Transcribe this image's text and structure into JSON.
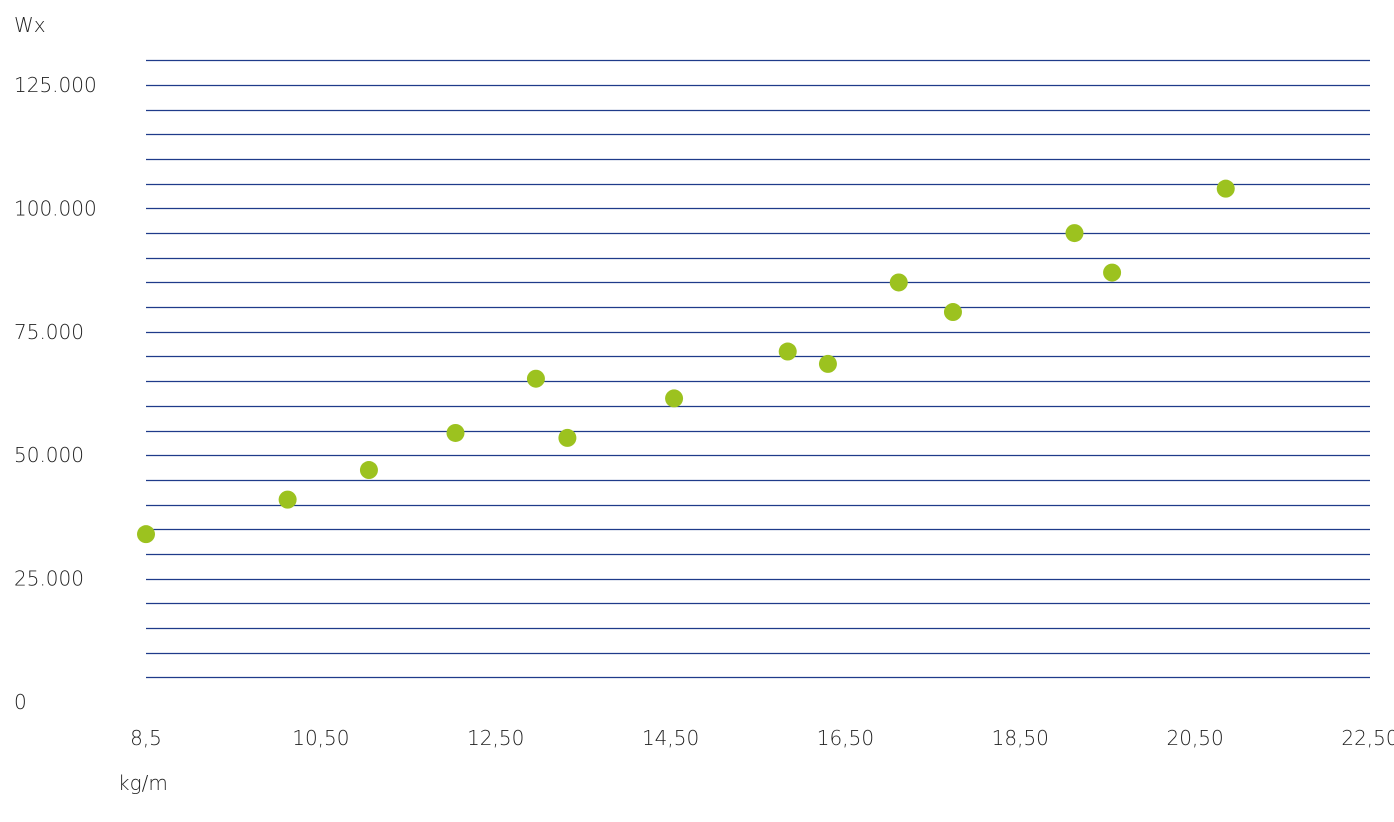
{
  "chart_data": {
    "type": "scatter",
    "ylabel": "Wx",
    "xlabel": "kg/m",
    "xlim": [
      8.5,
      22.5
    ],
    "ylim": [
      0,
      125000
    ],
    "x_ticks": [
      {
        "value": 8.5,
        "label": "8,5"
      },
      {
        "value": 10.5,
        "label": "10,50"
      },
      {
        "value": 12.5,
        "label": "12,50"
      },
      {
        "value": 14.5,
        "label": "14,50"
      },
      {
        "value": 16.5,
        "label": "16,50"
      },
      {
        "value": 18.5,
        "label": "18,50"
      },
      {
        "value": 20.5,
        "label": "20,50"
      },
      {
        "value": 22.5,
        "label": "22,50"
      }
    ],
    "y_ticks": [
      {
        "value": 0,
        "label": "0"
      },
      {
        "value": 25000,
        "label": "25.000"
      },
      {
        "value": 50000,
        "label": "50.000"
      },
      {
        "value": 75000,
        "label": "75.000"
      },
      {
        "value": 100000,
        "label": "100.000"
      },
      {
        "value": 125000,
        "label": "125.000"
      }
    ],
    "gridlines": {
      "y_max": 130000,
      "step": 5000,
      "color": "#1f3b8a"
    },
    "point_color": "#9cc21f",
    "points": [
      {
        "x": 8.5,
        "y": 34000
      },
      {
        "x": 10.12,
        "y": 41000
      },
      {
        "x": 11.05,
        "y": 47000
      },
      {
        "x": 12.04,
        "y": 54500
      },
      {
        "x": 12.96,
        "y": 65500
      },
      {
        "x": 13.32,
        "y": 53500
      },
      {
        "x": 14.54,
        "y": 61500
      },
      {
        "x": 15.84,
        "y": 71000
      },
      {
        "x": 16.3,
        "y": 68500
      },
      {
        "x": 17.11,
        "y": 85000
      },
      {
        "x": 17.73,
        "y": 79000
      },
      {
        "x": 19.12,
        "y": 95000
      },
      {
        "x": 19.55,
        "y": 87000
      },
      {
        "x": 20.85,
        "y": 104000
      }
    ]
  }
}
